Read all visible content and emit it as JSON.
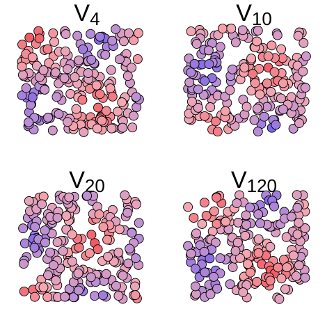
{
  "chart_data": [
    {
      "type": "scatter",
      "title_main": "V",
      "title_sub": "4",
      "seed": 4,
      "n_points": 200,
      "xlim": [
        0,
        1
      ],
      "ylim": [
        0,
        1
      ],
      "axes": "none",
      "grid": false,
      "color_scale": [
        "#2b2bff",
        "#b58cd8",
        "#f4a9b3",
        "#ee3a44"
      ]
    },
    {
      "type": "scatter",
      "title_main": "V",
      "title_sub": "10",
      "seed": 10,
      "n_points": 200,
      "xlim": [
        0,
        1
      ],
      "ylim": [
        0,
        1
      ],
      "axes": "none",
      "grid": false,
      "color_scale": [
        "#2b2bff",
        "#b58cd8",
        "#f4a9b3",
        "#ee3a44"
      ]
    },
    {
      "type": "scatter",
      "title_main": "V",
      "title_sub": "20",
      "seed": 20,
      "n_points": 200,
      "xlim": [
        0,
        1
      ],
      "ylim": [
        0,
        1
      ],
      "axes": "none",
      "grid": false,
      "color_scale": [
        "#2b2bff",
        "#b58cd8",
        "#f4a9b3",
        "#ee3a44"
      ]
    },
    {
      "type": "scatter",
      "title_main": "V",
      "title_sub": "120",
      "seed": 120,
      "n_points": 200,
      "xlim": [
        0,
        1
      ],
      "ylim": [
        0,
        1
      ],
      "axes": "none",
      "grid": false,
      "color_scale": [
        "#2b2bff",
        "#b58cd8",
        "#f4a9b3",
        "#ee3a44"
      ]
    }
  ]
}
